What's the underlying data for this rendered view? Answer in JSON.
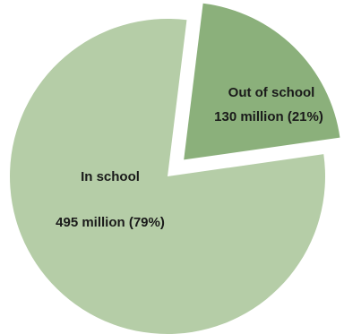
{
  "chart_data": {
    "type": "pie",
    "title": "",
    "slices": [
      {
        "label": "Out of school",
        "value_text": "130 million (21%)",
        "value": 130,
        "percent": 21,
        "color": "#8bb07b",
        "exploded": true
      },
      {
        "label": "In school",
        "value_text": "495 million (79%)",
        "value": 495,
        "percent": 79,
        "color": "#b5cda7",
        "exploded": false
      }
    ],
    "legend": "none"
  }
}
